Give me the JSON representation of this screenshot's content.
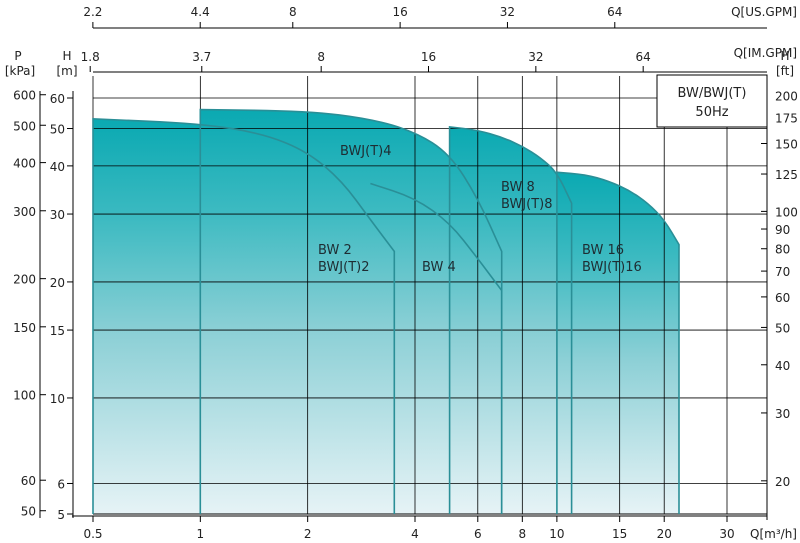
{
  "chart_data": {
    "type": "area",
    "title_box": [
      "BW/BWJ(T)",
      "50Hz"
    ],
    "x_axis": {
      "label": "Q[m³/h]",
      "scale": "log",
      "range": [
        0.5,
        30
      ],
      "ticks": [
        "0.5",
        "1",
        "2",
        "4",
        "6",
        "8",
        "10",
        "15",
        "20",
        "30"
      ]
    },
    "top_axis_us": {
      "label": "Q[US.GPM]",
      "ticks": [
        "2.2",
        "4.4",
        "8",
        "16",
        "32",
        "64"
      ]
    },
    "top_axis_im": {
      "label": "Q[IM.GPM]",
      "ticks": [
        "1.8",
        "3.7",
        "8",
        "16",
        "32",
        "64"
      ]
    },
    "y_axis_m": {
      "label": "H",
      "unit": "[m]",
      "scale": "log",
      "range": [
        5,
        60
      ],
      "ticks": [
        "5",
        "6",
        "10",
        "15",
        "20",
        "30",
        "40",
        "50",
        "60"
      ]
    },
    "y_axis_kpa": {
      "label": "P",
      "unit": "[kPa]",
      "ticks": [
        "50",
        "60",
        "100",
        "150",
        "200",
        "300",
        "400",
        "500",
        "600"
      ]
    },
    "y_axis_ft": {
      "label": "H",
      "unit": "[ft]",
      "ticks": [
        "20",
        "30",
        "40",
        "50",
        "60",
        "70",
        "80",
        "90",
        "100",
        "125",
        "150",
        "175",
        "200"
      ]
    },
    "grid": true,
    "series": [
      {
        "name": "BW 2 / BWJ(T)2",
        "q": [
          0.5,
          1.0,
          1.5,
          2.0,
          2.5,
          3.0,
          3.5
        ],
        "h": [
          53,
          51.5,
          48.5,
          43.5,
          36.5,
          29,
          24
        ]
      },
      {
        "name": "BWJ(T)4",
        "q": [
          1.0,
          2.0,
          3.0,
          4.0,
          5.0,
          6.0,
          7.0
        ],
        "h": [
          56,
          55.5,
          53,
          49,
          43,
          33,
          24
        ]
      },
      {
        "name": "BW 4",
        "q": [
          3.0,
          4.0,
          5.0,
          6.0,
          7.0
        ],
        "h": [
          36,
          33,
          28.5,
          23,
          19
        ]
      },
      {
        "name": "BW 8 / BWJ(T)8",
        "q": [
          5.0,
          6.0,
          7.0,
          8.0,
          9.0,
          10.0,
          11.0
        ],
        "h": [
          50.5,
          49.5,
          47.5,
          45,
          42,
          38.5,
          32
        ]
      },
      {
        "name": "BW 16 / BWJ(T)16",
        "q": [
          10.0,
          12.0,
          14.0,
          16.0,
          18.0,
          20.0,
          22.0
        ],
        "h": [
          38.5,
          38,
          36.5,
          34.5,
          32,
          29,
          25
        ]
      }
    ],
    "labels": {
      "bwjt4": "BWJ(T)4",
      "bw8": "BW 8",
      "bwjt8": "BWJ(T)8",
      "bw2": "BW 2",
      "bwjt2": "BWJ(T)2",
      "bw4": "BW 4",
      "bw16": "BW 16",
      "bwjt16": "BWJ(T)16"
    },
    "colors": {
      "fill_top": "#0aa9b2",
      "fill_bottom": "#e6f3f6",
      "stroke": "#2a8f97",
      "grid": "#000000"
    }
  }
}
